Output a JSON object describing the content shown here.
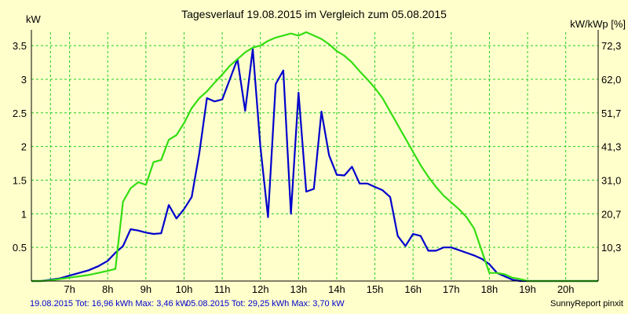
{
  "chart_data": {
    "type": "line",
    "title": "Tagesverlauf 19.08.2015 im Vergleich zum 05.08.2015",
    "ylabel_left": "kW",
    "ylabel_right": "kW/kWp [%]",
    "xlim": [
      6.0,
      20.85
    ],
    "ylim": [
      0,
      3.7
    ],
    "grid": true,
    "x_ticks": [
      7,
      8,
      9,
      10,
      11,
      12,
      13,
      14,
      15,
      16,
      17,
      18,
      19,
      20
    ],
    "x_tick_labels": [
      "7h",
      "8h",
      "9h",
      "10h",
      "11h",
      "12h",
      "13h",
      "14h",
      "15h",
      "16h",
      "17h",
      "18h",
      "19h",
      "20h"
    ],
    "y_ticks": [
      0.5,
      1,
      1.5,
      2,
      2.5,
      3,
      3.5
    ],
    "y_tick_labels": [
      "0.5",
      "1",
      "1.5",
      "2",
      "2.5",
      "3",
      "3.5"
    ],
    "y2_ticks": [
      0.5,
      1,
      1.5,
      2,
      2.5,
      3,
      3.5
    ],
    "y2_tick_labels": [
      "10,3",
      "20,7",
      "31,0",
      "41,3",
      "51,7",
      "62,0",
      "72,3"
    ],
    "series": [
      {
        "name": "19.08.2015",
        "color": "#0000cc",
        "x": [
          6.0,
          6.25,
          6.5,
          6.75,
          7.0,
          7.25,
          7.5,
          7.75,
          8.0,
          8.2,
          8.4,
          8.6,
          8.8,
          9.0,
          9.2,
          9.4,
          9.6,
          9.8,
          10.0,
          10.2,
          10.4,
          10.6,
          10.8,
          11.0,
          11.2,
          11.4,
          11.6,
          11.8,
          12.0,
          12.2,
          12.4,
          12.6,
          12.8,
          13.0,
          13.2,
          13.4,
          13.6,
          13.8,
          14.0,
          14.2,
          14.4,
          14.6,
          14.8,
          15.0,
          15.2,
          15.4,
          15.6,
          15.8,
          16.0,
          16.2,
          16.4,
          16.6,
          16.8,
          17.0,
          17.2,
          17.4,
          17.6,
          17.8,
          18.0,
          18.2,
          18.4,
          18.6,
          18.8,
          19.0,
          19.2,
          19.4,
          19.6,
          19.8,
          20.0,
          20.2,
          20.4,
          20.6,
          20.85
        ],
        "y": [
          0.0,
          0.0,
          0.02,
          0.04,
          0.08,
          0.12,
          0.16,
          0.22,
          0.3,
          0.42,
          0.52,
          0.77,
          0.75,
          0.72,
          0.7,
          0.71,
          1.13,
          0.93,
          1.07,
          1.25,
          1.9,
          2.72,
          2.67,
          2.7,
          3.0,
          3.3,
          2.53,
          3.45,
          2.0,
          0.95,
          2.93,
          3.13,
          1.0,
          2.8,
          1.33,
          1.37,
          2.52,
          1.87,
          1.58,
          1.57,
          1.7,
          1.45,
          1.45,
          1.4,
          1.35,
          1.25,
          0.67,
          0.52,
          0.7,
          0.67,
          0.45,
          0.45,
          0.5,
          0.5,
          0.46,
          0.42,
          0.38,
          0.33,
          0.25,
          0.12,
          0.07,
          0.02,
          0.0,
          0.0,
          0.0,
          0.0,
          0.0,
          0.0,
          0.0,
          0.0,
          0.0,
          0.0,
          0.0
        ]
      },
      {
        "name": "05.08.2015",
        "color": "#33dd11",
        "x": [
          6.0,
          6.25,
          6.5,
          6.75,
          7.0,
          7.25,
          7.5,
          7.75,
          8.0,
          8.2,
          8.4,
          8.6,
          8.8,
          9.0,
          9.2,
          9.4,
          9.6,
          9.8,
          10.0,
          10.2,
          10.4,
          10.6,
          10.8,
          11.0,
          11.2,
          11.4,
          11.6,
          11.8,
          12.0,
          12.2,
          12.4,
          12.6,
          12.8,
          13.0,
          13.2,
          13.4,
          13.6,
          13.8,
          14.0,
          14.2,
          14.4,
          14.6,
          14.8,
          15.0,
          15.2,
          15.4,
          15.6,
          15.8,
          16.0,
          16.2,
          16.4,
          16.6,
          16.8,
          17.0,
          17.2,
          17.4,
          17.6,
          17.8,
          18.0,
          18.2,
          18.4,
          18.6,
          18.8,
          19.0,
          19.2,
          19.4,
          19.6,
          19.8,
          20.0,
          20.2,
          20.4,
          20.6,
          20.85
        ],
        "y": [
          0.0,
          0.0,
          0.01,
          0.03,
          0.05,
          0.07,
          0.09,
          0.12,
          0.15,
          0.18,
          1.18,
          1.38,
          1.47,
          1.43,
          1.77,
          1.8,
          2.1,
          2.17,
          2.35,
          2.57,
          2.72,
          2.82,
          2.95,
          3.07,
          3.2,
          3.3,
          3.4,
          3.47,
          3.5,
          3.57,
          3.62,
          3.65,
          3.68,
          3.65,
          3.7,
          3.65,
          3.6,
          3.52,
          3.42,
          3.35,
          3.25,
          3.12,
          3.0,
          2.87,
          2.72,
          2.52,
          2.32,
          2.12,
          1.92,
          1.72,
          1.55,
          1.4,
          1.27,
          1.17,
          1.07,
          0.95,
          0.78,
          0.45,
          0.12,
          0.12,
          0.1,
          0.05,
          0.03,
          0.0,
          0.0,
          0.0,
          0.0,
          0.0,
          0.0,
          0.0,
          0.0,
          0.0,
          0.0
        ]
      }
    ]
  },
  "footer": {
    "left_series1": "19.08.2015 Tot: 16,96 kWh Max: 3,46 kW",
    "left_series2": "05.08.2015 Tot: 29,25 kWh Max: 3,70 kW",
    "right": "SunnyReport pinxit"
  },
  "colors": {
    "background": "#ffffcc",
    "grid": "#22cc22",
    "axis": "#000000"
  }
}
